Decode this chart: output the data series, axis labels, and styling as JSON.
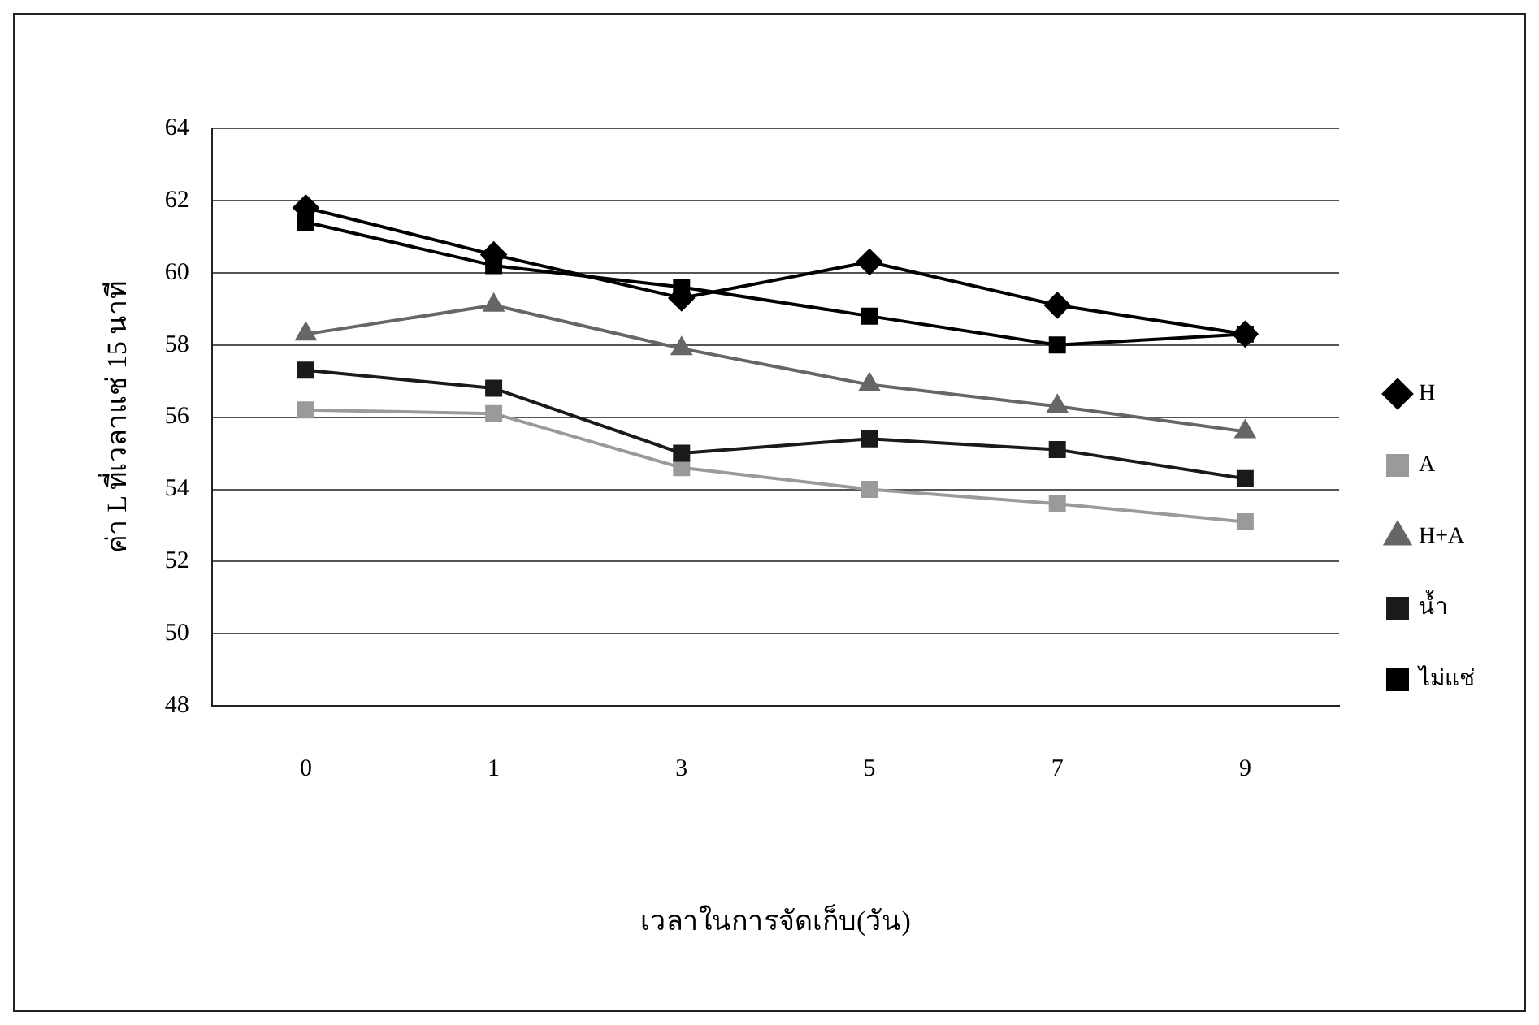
{
  "chart_data": {
    "type": "line",
    "xlabel": "เวลาในการจัดเก็บ(วัน)",
    "ylabel": "ค่า L ที่เวลาแช่ 15 นาที",
    "categories": [
      "0",
      "1",
      "3",
      "5",
      "7",
      "9"
    ],
    "series": [
      {
        "name": "H",
        "color": "#000000",
        "marker": "diamond",
        "values": [
          61.8,
          60.5,
          59.3,
          60.3,
          59.1,
          58.3
        ]
      },
      {
        "name": "A",
        "color": "#9a9a9a",
        "marker": "square",
        "values": [
          56.2,
          56.1,
          54.6,
          54.0,
          53.6,
          53.1
        ]
      },
      {
        "name": "H+A",
        "color": "#666666",
        "marker": "triangle",
        "values": [
          58.3,
          59.1,
          57.9,
          56.9,
          56.3,
          55.6
        ]
      },
      {
        "name": "น้ำ",
        "color": "#1a1a1a",
        "marker": "square",
        "values": [
          57.3,
          56.8,
          55.0,
          55.4,
          55.1,
          54.3
        ]
      },
      {
        "name": "ไม่แช่",
        "color": "#000000",
        "marker": "square",
        "values": [
          61.4,
          60.2,
          59.6,
          58.8,
          58.0,
          58.3
        ]
      }
    ],
    "ylim": [
      48,
      64
    ],
    "yticks": [
      48,
      50,
      52,
      54,
      56,
      58,
      60,
      62,
      64
    ],
    "grid": "y",
    "legend": "right"
  }
}
